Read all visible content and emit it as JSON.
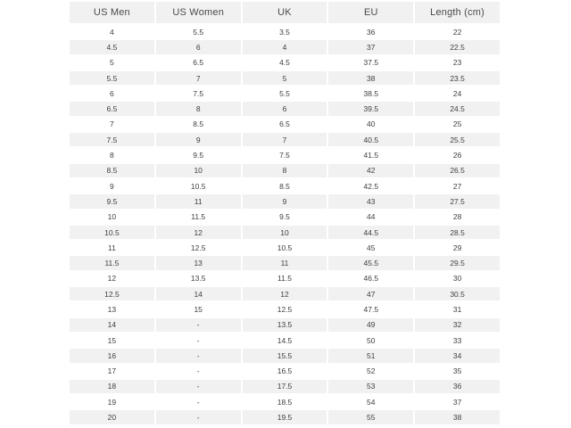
{
  "style": {
    "page_bg": "#ffffff",
    "header_bg": "#f1f1f1",
    "alt_row_bg": "#f1f1f1",
    "header_text": "#4a4a4a",
    "cell_text": "#3f3f3f"
  },
  "chart_data": {
    "type": "table",
    "columns": [
      "US Men",
      "US Women",
      "UK",
      "EU",
      "Length (cm)"
    ],
    "rows": [
      [
        "4",
        "5.5",
        "3.5",
        "36",
        "22"
      ],
      [
        "4.5",
        "6",
        "4",
        "37",
        "22.5"
      ],
      [
        "5",
        "6.5",
        "4.5",
        "37.5",
        "23"
      ],
      [
        "5.5",
        "7",
        "5",
        "38",
        "23.5"
      ],
      [
        "6",
        "7.5",
        "5.5",
        "38.5",
        "24"
      ],
      [
        "6.5",
        "8",
        "6",
        "39.5",
        "24.5"
      ],
      [
        "7",
        "8.5",
        "6.5",
        "40",
        "25"
      ],
      [
        "7.5",
        "9",
        "7",
        "40.5",
        "25.5"
      ],
      [
        "8",
        "9.5",
        "7.5",
        "41.5",
        "26"
      ],
      [
        "8.5",
        "10",
        "8",
        "42",
        "26.5"
      ],
      [
        "9",
        "10.5",
        "8.5",
        "42.5",
        "27"
      ],
      [
        "9.5",
        "11",
        "9",
        "43",
        "27.5"
      ],
      [
        "10",
        "11.5",
        "9.5",
        "44",
        "28"
      ],
      [
        "10.5",
        "12",
        "10",
        "44.5",
        "28.5"
      ],
      [
        "11",
        "12.5",
        "10.5",
        "45",
        "29"
      ],
      [
        "11.5",
        "13",
        "11",
        "45.5",
        "29.5"
      ],
      [
        "12",
        "13.5",
        "11.5",
        "46.5",
        "30"
      ],
      [
        "12.5",
        "14",
        "12",
        "47",
        "30.5"
      ],
      [
        "13",
        "15",
        "12.5",
        "47.5",
        "31"
      ],
      [
        "14",
        "-",
        "13.5",
        "49",
        "32"
      ],
      [
        "15",
        "-",
        "14.5",
        "50",
        "33"
      ],
      [
        "16",
        "-",
        "15.5",
        "51",
        "34"
      ],
      [
        "17",
        "-",
        "16.5",
        "52",
        "35"
      ],
      [
        "18",
        "-",
        "17.5",
        "53",
        "36"
      ],
      [
        "19",
        "-",
        "18.5",
        "54",
        "37"
      ],
      [
        "20",
        "-",
        "19.5",
        "55",
        "38"
      ]
    ],
    "layout": {
      "legend": "none",
      "grid": "row-striping",
      "first_row_background": "white",
      "alternating_row_background": "#f1f1f1"
    }
  }
}
